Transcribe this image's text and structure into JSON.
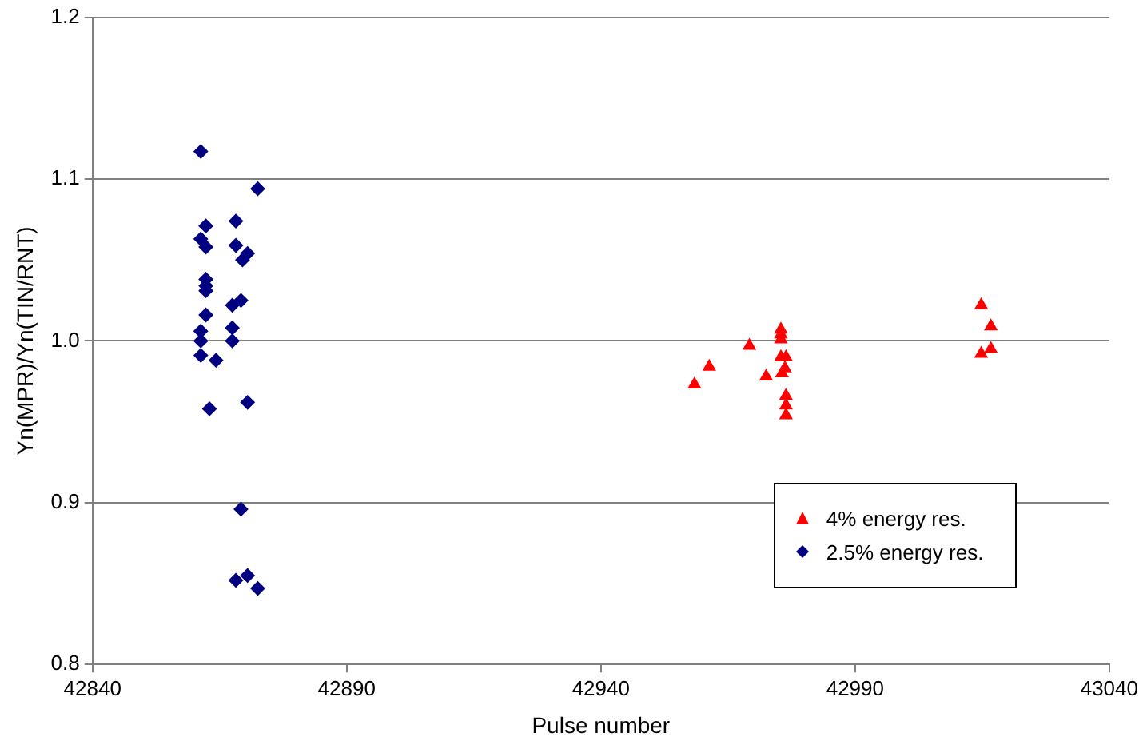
{
  "chart_data": {
    "type": "scatter",
    "xlabel": "Pulse number",
    "ylabel": "Yn(MPR)/Yn(TIN/RNT)",
    "xlim": [
      42840,
      43040
    ],
    "xticks": [
      42840,
      42890,
      42940,
      42990,
      43040
    ],
    "ylim": [
      0.8,
      1.2
    ],
    "yticks": [
      {
        "value": 0.8,
        "label": "0.8"
      },
      {
        "value": 0.9,
        "label": "0.9"
      },
      {
        "value": 1.0,
        "label": "1.0"
      },
      {
        "value": 1.1,
        "label": "1.1"
      },
      {
        "value": 1.2,
        "label": "1.2"
      }
    ],
    "grid": "y",
    "legend": "bottom right",
    "series": [
      {
        "name": "4% energy res.",
        "color": "#ff0000",
        "marker": "triangle",
        "x": [
          42958.4,
          42961.3,
          42969.2,
          42972.5,
          42975.4,
          42975.4,
          42975.4,
          42975.4,
          42976.4,
          42976.2,
          42975.6,
          42976.4,
          42976.4,
          42976.4,
          43014.8,
          43016.7,
          43014.8,
          43016.7
        ],
        "values": [
          0.973,
          0.984,
          0.997,
          0.978,
          1.007,
          1.004,
          1.001,
          0.99,
          0.99,
          0.983,
          0.98,
          0.966,
          0.96,
          0.954,
          1.022,
          1.009,
          0.992,
          0.995
        ]
      },
      {
        "name": "2.5% energy res.",
        "color": "#000080",
        "marker": "diamond",
        "x": [
          42861.3,
          42861.3,
          42861.3,
          42861.3,
          42861.3,
          42864.3,
          42863,
          42862.3,
          42862.3,
          42862.3,
          42862.3,
          42862.3,
          42862.3,
          42868.2,
          42868.2,
          42870.5,
          42869.5,
          42869.2,
          42867.5,
          42867.5,
          42867.5,
          42872.5,
          42870.5,
          42869.2,
          42868.2,
          42870.5,
          42872.5
        ],
        "values": [
          1.117,
          1.063,
          1.006,
          1.0,
          0.991,
          0.988,
          0.958,
          1.071,
          1.058,
          1.038,
          1.034,
          1.031,
          1.016,
          1.074,
          1.059,
          1.054,
          1.05,
          1.025,
          1.022,
          1.008,
          1.0,
          1.094,
          0.962,
          0.896,
          0.852,
          0.855,
          0.847
        ]
      }
    ]
  }
}
